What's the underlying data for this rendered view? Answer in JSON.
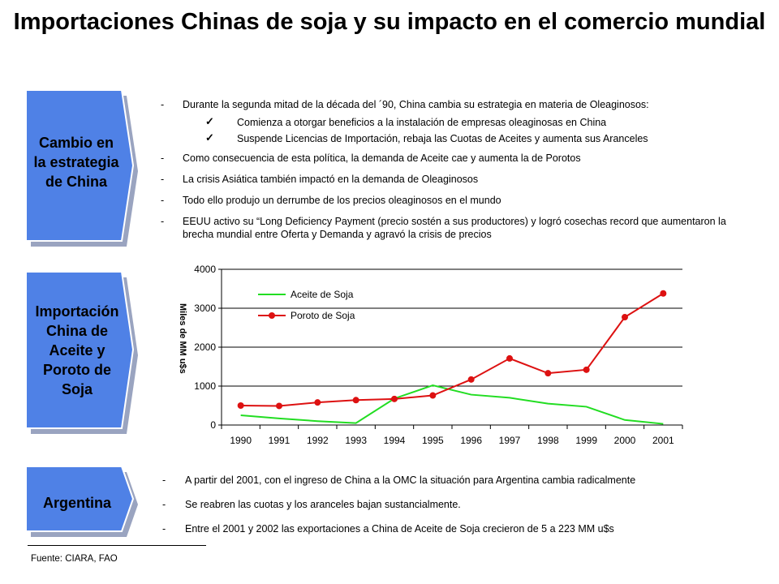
{
  "title": "Importaciones Chinas de soja y su impacto en el comercio mundial",
  "colors": {
    "box_fill": "#4f81e6",
    "box_shadow": "#9aa4c0",
    "aceite": "#22dd22",
    "poroto": "#dd1111"
  },
  "sections": {
    "cambio": {
      "label": "Cambio en la estrategia de China",
      "bullets": [
        {
          "text": "Durante la segunda mitad de la década del ´90, China cambia su estrategia en materia de Oleaginosos:",
          "sub": [
            "Comienza a otorgar beneficios a la instalación de empresas oleaginosas en China",
            "Suspende Licencias de Importación, rebaja las Cuotas de Aceites y aumenta sus Aranceles"
          ]
        },
        {
          "text": "Como consecuencia de esta política, la demanda de Aceite cae y aumenta la de Porotos"
        },
        {
          "text": "La crisis Asiática también impactó en la demanda de Oleaginosos"
        },
        {
          "text": "Todo ello produjo un derrumbe de los precios oleaginosos  en el mundo"
        },
        {
          "text": "EEUU activo su “Long Deficiency Payment (precio sostén a sus productores) y logró cosechas record que aumentaron la brecha mundial entre Oferta y Demanda y agravó la crisis de precios"
        }
      ]
    },
    "importacion": {
      "label": "Importación China de Aceite y Poroto de Soja"
    },
    "argentina": {
      "label": "Argentina",
      "bullets": [
        "A partir del 2001, con el ingreso de China a la OMC la situación para Argentina cambia radicalmente",
        "Se reabren las cuotas y los aranceles bajan sustancialmente.",
        "Entre el 2001 y 2002 las exportaciones a China de Aceite de Soja crecieron de 5 a 223 MM u$s"
      ]
    }
  },
  "bullet_dash": "-",
  "check_glyph": "✓",
  "source": "Fuente: CIARA, FAO",
  "chart_data": {
    "type": "line",
    "categories": [
      "1990",
      "1991",
      "1992",
      "1993",
      "1994",
      "1995",
      "1996",
      "1997",
      "1998",
      "1999",
      "2000",
      "2001"
    ],
    "ylabel": "Miles de MM u$s",
    "ylim": [
      0,
      4000
    ],
    "yticks": [
      0,
      1000,
      2000,
      3000,
      4000
    ],
    "grid": true,
    "legend": "top-left",
    "series": [
      {
        "name": "Aceite de Soja",
        "color": "#22dd22",
        "marker": "none",
        "values": [
          250,
          170,
          100,
          50,
          680,
          1020,
          780,
          700,
          550,
          470,
          130,
          30
        ]
      },
      {
        "name": "Poroto de Soja",
        "color": "#dd1111",
        "marker": "circle",
        "values": [
          500,
          490,
          580,
          640,
          670,
          760,
          1170,
          1710,
          1330,
          1420,
          2770,
          3380
        ]
      }
    ]
  }
}
